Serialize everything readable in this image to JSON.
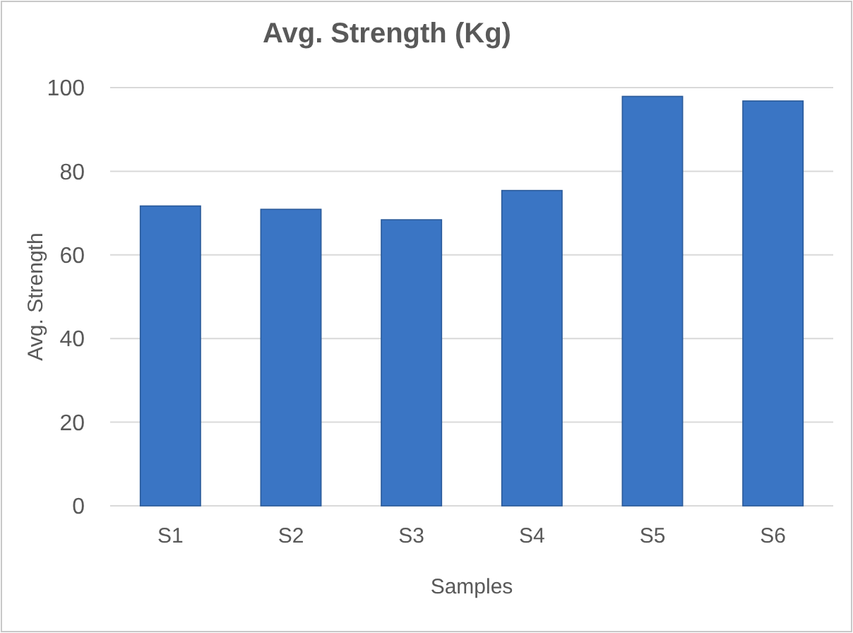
{
  "chart_data": {
    "type": "bar",
    "title": "Avg. Strength (Kg)",
    "xlabel": "Samples",
    "ylabel": "Avg. Strength",
    "categories": [
      "S1",
      "S2",
      "S3",
      "S4",
      "S5",
      "S6"
    ],
    "values": [
      71.7,
      70.9,
      68.4,
      75.4,
      97.9,
      96.8
    ],
    "color": "#3a75c4",
    "ylim": [
      0,
      100
    ],
    "yticks": [
      0,
      20,
      40,
      60,
      80,
      100
    ],
    "grid": "y"
  }
}
